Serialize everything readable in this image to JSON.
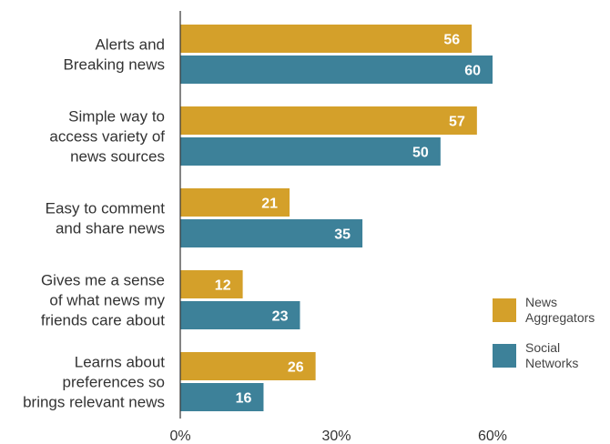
{
  "chart_data": {
    "type": "bar",
    "orientation": "horizontal",
    "categories": [
      [
        "Alerts and",
        "Breaking news"
      ],
      [
        "Simple way to",
        "access variety of",
        "news sources"
      ],
      [
        "Easy to comment",
        "and share news"
      ],
      [
        "Gives me a sense",
        "of what news my",
        "friends care about"
      ],
      [
        "Learns about",
        "preferences so",
        "brings relevant news"
      ]
    ],
    "series": [
      {
        "name": "News Aggregators",
        "legend_lines": [
          "News",
          "Aggregators"
        ],
        "color": "#d4a02a",
        "values": [
          56,
          57,
          21,
          12,
          26
        ]
      },
      {
        "name": "Social Networks",
        "legend_lines": [
          "Social",
          "Networks"
        ],
        "color": "#3d8199",
        "values": [
          60,
          50,
          35,
          23,
          16
        ]
      }
    ],
    "xlim": [
      0,
      60
    ],
    "xticks": [
      {
        "value": 0,
        "label": "0%"
      },
      {
        "value": 30,
        "label": "30%"
      },
      {
        "value": 60,
        "label": "60%"
      }
    ],
    "grid": false,
    "legend_position": "right",
    "value_label_color": "#ffffff",
    "axis_color": "#333333"
  }
}
